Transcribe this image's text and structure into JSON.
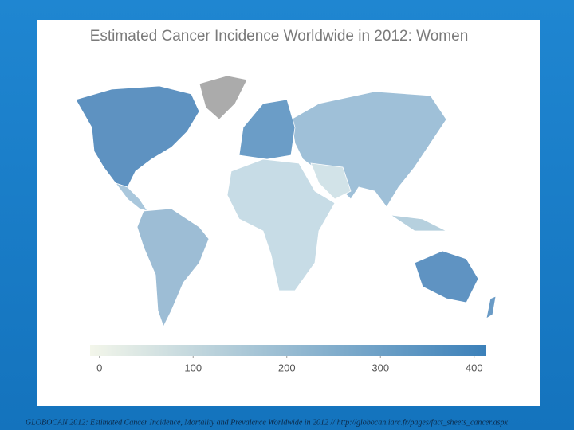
{
  "chart_data": {
    "type": "choropleth",
    "title": "Estimated Cancer Incidence Worldwide in 2012: Women",
    "colorbar": {
      "lim": [
        -10,
        413
      ],
      "ticks": [
        0,
        100,
        200,
        300,
        400
      ],
      "colors": [
        "#f3f6ea",
        "#3b80b9"
      ]
    }
  },
  "footer": "GLOBOCAN 2012: Estimated Cancer Incidence, Mortality and Prevalence Worldwide in 2012 // http://globocan.iarc.fr/pages/fact_sheets_cancer.aspx"
}
